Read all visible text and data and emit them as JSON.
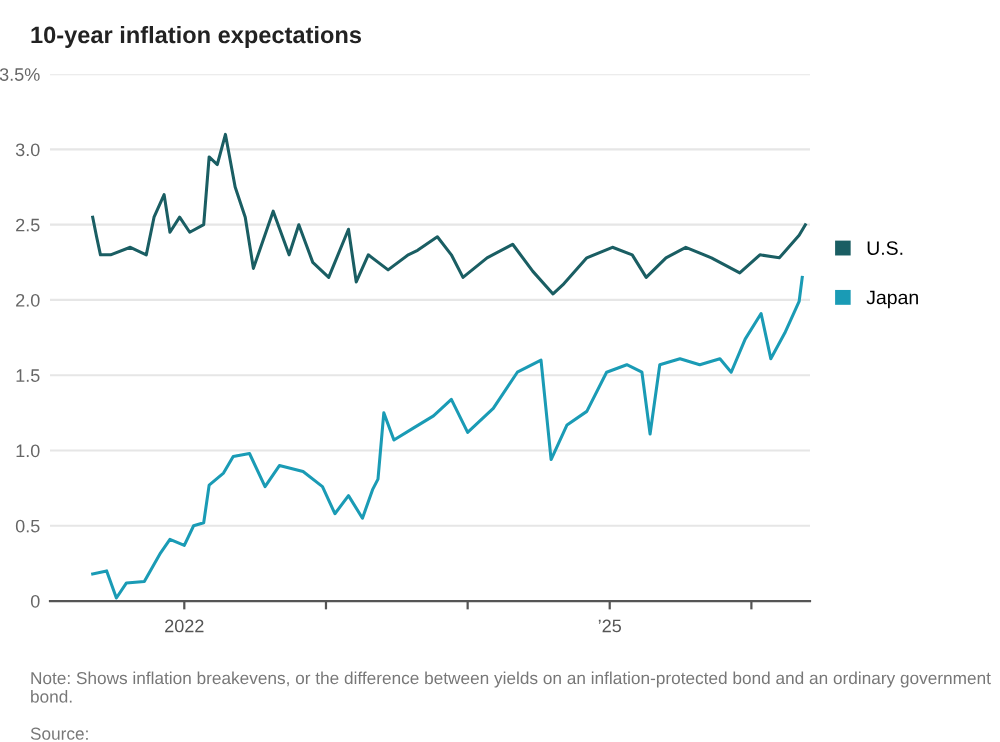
{
  "chart_data": {
    "type": "line",
    "title": "10-year inflation expectations",
    "annotations": [
      "Note: Shows inflation breakevens, or the difference between yields on an inflation-protected bond and an ordinary government bond.",
      "Source:"
    ],
    "xlim": [
      "2021-01-20",
      "2026-06-01"
    ],
    "xticks": [
      {
        "value": "2022-01-01",
        "label": "2022"
      },
      {
        "value": "2023-01-01",
        "label": null
      },
      {
        "value": "2024-01-01",
        "label": null
      },
      {
        "value": "2025-01-01",
        "label": "’25"
      },
      {
        "value": "2026-01-01",
        "label": null
      }
    ],
    "ylim": [
      0,
      3.5
    ],
    "yticks": [
      0,
      0.5,
      {
        "value": 1.0,
        "label": "1.0"
      },
      1.5,
      {
        "value": 2.0,
        "label": "2.0"
      },
      2.5,
      {
        "value": 3.0,
        "label": "3.0"
      },
      {
        "value": 3.5,
        "label": "3.5%"
      }
    ],
    "grid": "y",
    "legend": "right",
    "series": [
      {
        "name": "U.S.",
        "color": "#1a5e63",
        "x": [
          "2021-05-10",
          "2021-05-20",
          "2021-05-30",
          "2021-06-25",
          "2021-08-15",
          "2021-09-25",
          "2021-10-15",
          "2021-11-10",
          "2021-11-25",
          "2021-12-20",
          "2022-01-15",
          "2022-02-20",
          "2022-03-06",
          "2022-03-27",
          "2022-04-17",
          "2022-05-12",
          "2022-06-07",
          "2022-06-28",
          "2022-08-18",
          "2022-09-28",
          "2022-10-23",
          "2022-11-28",
          "2023-01-08",
          "2023-02-28",
          "2023-03-20",
          "2023-04-20",
          "2023-06-10",
          "2023-08-01",
          "2023-08-25",
          "2023-10-15",
          "2023-11-20",
          "2023-12-20",
          "2024-02-20",
          "2024-04-26",
          "2024-06-17",
          "2024-08-08",
          "2024-09-02",
          "2024-11-03",
          "2025-01-08",
          "2025-02-28",
          "2025-04-05",
          "2025-05-26",
          "2025-07-16",
          "2025-09-20",
          "2025-12-02",
          "2026-01-23",
          "2026-03-14",
          "2026-05-04",
          "2026-05-20"
        ],
        "values": [
          2.55,
          2.42,
          2.3,
          2.3,
          2.35,
          2.3,
          2.55,
          2.7,
          2.45,
          2.55,
          2.45,
          2.5,
          2.95,
          2.9,
          3.1,
          2.75,
          2.55,
          2.21,
          2.59,
          2.3,
          2.5,
          2.25,
          2.15,
          2.47,
          2.12,
          2.3,
          2.2,
          2.3,
          2.33,
          2.42,
          2.3,
          2.15,
          2.28,
          2.37,
          2.19,
          2.04,
          2.1,
          2.28,
          2.35,
          2.3,
          2.15,
          2.28,
          2.35,
          2.28,
          2.18,
          2.3,
          2.28,
          2.43,
          2.5
        ]
      },
      {
        "name": "Japan",
        "color": "#1a9bb5",
        "x": [
          "2021-05-10",
          "2021-06-15",
          "2021-07-10",
          "2021-08-05",
          "2021-09-20",
          "2021-11-01",
          "2021-11-25",
          "2022-01-01",
          "2022-01-25",
          "2022-02-20",
          "2022-03-06",
          "2022-04-12",
          "2022-05-07",
          "2022-06-18",
          "2022-07-28",
          "2022-09-03",
          "2022-11-03",
          "2022-12-23",
          "2023-01-24",
          "2023-02-28",
          "2023-04-05",
          "2023-05-01",
          "2023-05-15",
          "2023-05-30",
          "2023-06-25",
          "2023-08-15",
          "2023-10-05",
          "2023-11-20",
          "2024-01-01",
          "2024-03-07",
          "2024-05-08",
          "2024-07-08",
          "2024-08-03",
          "2024-09-13",
          "2024-11-03",
          "2024-12-24",
          "2025-02-14",
          "2025-03-25",
          "2025-04-15",
          "2025-05-10",
          "2025-07-01",
          "2025-08-21",
          "2025-10-12",
          "2025-11-10",
          "2025-12-16",
          "2026-01-26",
          "2026-02-20",
          "2026-03-28",
          "2026-05-04",
          "2026-05-12"
        ],
        "values": [
          0.18,
          0.2,
          0.02,
          0.12,
          0.13,
          0.32,
          0.41,
          0.37,
          0.5,
          0.52,
          0.77,
          0.85,
          0.96,
          0.98,
          0.76,
          0.9,
          0.86,
          0.76,
          0.58,
          0.7,
          0.55,
          0.74,
          0.81,
          1.25,
          1.07,
          1.15,
          1.23,
          1.34,
          1.12,
          1.28,
          1.52,
          1.6,
          0.94,
          1.17,
          1.26,
          1.52,
          1.57,
          1.52,
          1.11,
          1.57,
          1.61,
          1.57,
          1.61,
          1.52,
          1.74,
          1.91,
          1.61,
          1.78,
          1.99,
          2.15
        ]
      }
    ]
  }
}
